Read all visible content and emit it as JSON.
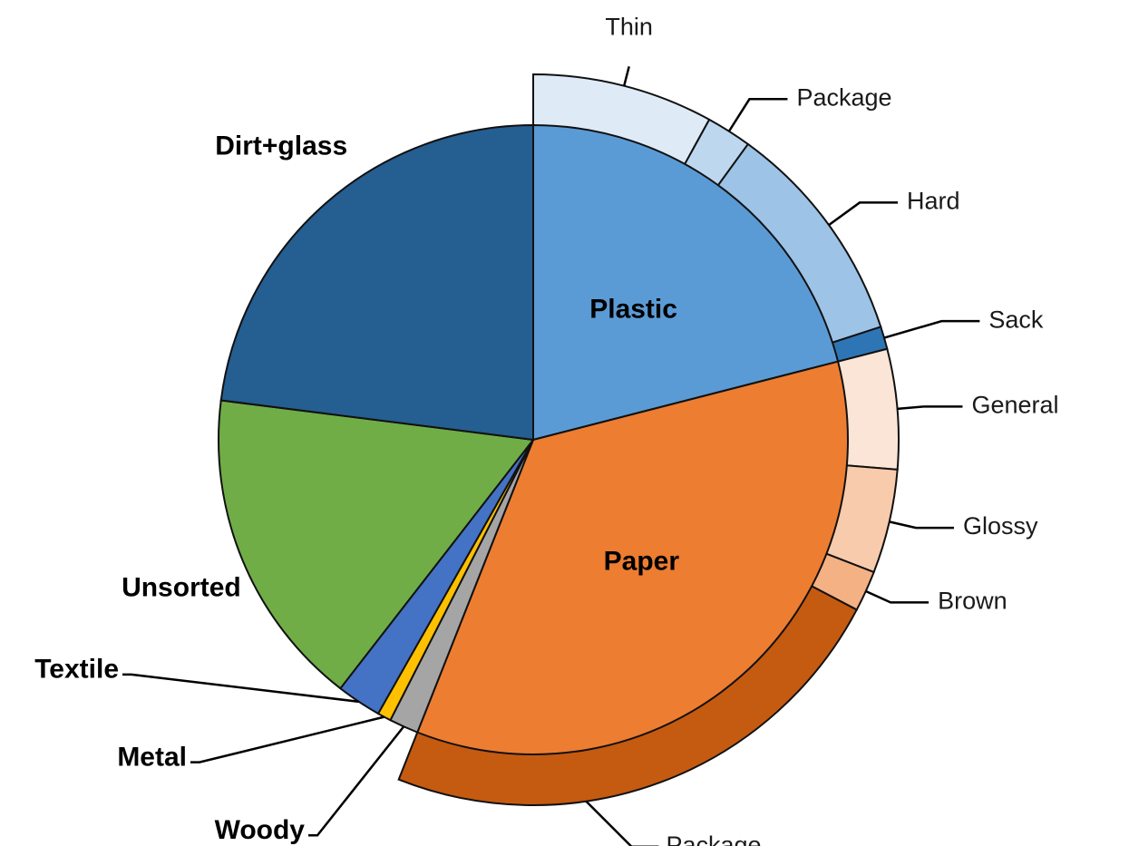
{
  "chart_data": {
    "type": "pie",
    "title": "",
    "inner": [
      {
        "label": "Plastic",
        "value": 21.0,
        "color": "#5b9bd5",
        "label_pos": "inside"
      },
      {
        "label": "Paper",
        "value": 35.0,
        "color": "#ed7d31",
        "label_pos": "inside"
      },
      {
        "label": "Woody",
        "value": 1.5,
        "color": "#a5a5a5",
        "label_pos": "leader"
      },
      {
        "label": "Metal",
        "value": 0.7,
        "color": "#ffc000",
        "label_pos": "leader"
      },
      {
        "label": "Textile",
        "value": 2.3,
        "color": "#4472c4",
        "label_pos": "leader"
      },
      {
        "label": "Unsorted",
        "value": 16.5,
        "color": "#70ad47",
        "label_pos": "outside"
      },
      {
        "label": "Dirt+glass",
        "value": 23.0,
        "color": "#255e91",
        "label_pos": "outside"
      }
    ],
    "outer": [
      {
        "label": "Thin",
        "parent": "Plastic",
        "value": 8.0,
        "color": "#deebf7"
      },
      {
        "label": "Package",
        "parent": "Plastic",
        "value": 2.0,
        "color": "#bdd7ee"
      },
      {
        "label": "Hard",
        "parent": "Plastic",
        "value": 10.0,
        "color": "#9dc3e6"
      },
      {
        "label": "Sack",
        "parent": "Plastic",
        "value": 1.0,
        "color": "#2e75b6"
      },
      {
        "label": "General",
        "parent": "Paper",
        "value": 5.3,
        "color": "#fbe5d6"
      },
      {
        "label": "Glossy",
        "parent": "Paper",
        "value": 4.6,
        "color": "#f8cbad"
      },
      {
        "label": "Brown",
        "parent": "Paper",
        "value": 1.8,
        "color": "#f4b183"
      },
      {
        "label": "Package",
        "parent": "Paper",
        "value": 23.3,
        "color": "#c55a11"
      }
    ],
    "start_angle_deg": 0,
    "direction": "clockwise",
    "legend": "none"
  }
}
